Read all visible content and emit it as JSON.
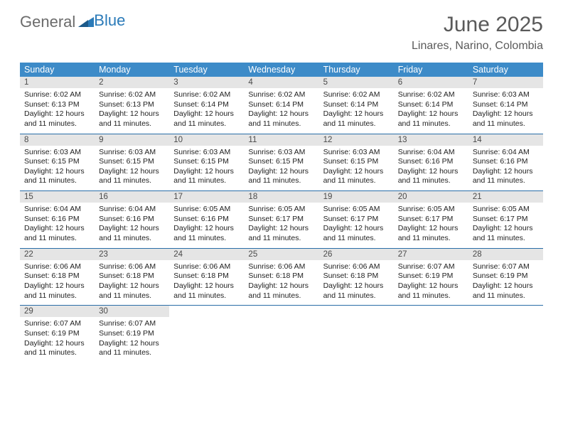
{
  "logo": {
    "text1": "General",
    "text2": "Blue"
  },
  "title": "June 2025",
  "location": "Linares, Narino, Colombia",
  "colors": {
    "header_bg": "#3d8bc8",
    "header_text": "#ffffff",
    "daynum_bg": "#e5e5e5",
    "week_divider": "#2a6ea8",
    "title_color": "#5a5a5a",
    "logo_gray": "#6b6b6b",
    "logo_blue": "#2a7ab8",
    "body_text": "#222222",
    "background": "#ffffff"
  },
  "weekdays": [
    "Sunday",
    "Monday",
    "Tuesday",
    "Wednesday",
    "Thursday",
    "Friday",
    "Saturday"
  ],
  "days": [
    {
      "n": "1",
      "sr": "Sunrise: 6:02 AM",
      "ss": "Sunset: 6:13 PM",
      "dl": "Daylight: 12 hours and 11 minutes."
    },
    {
      "n": "2",
      "sr": "Sunrise: 6:02 AM",
      "ss": "Sunset: 6:13 PM",
      "dl": "Daylight: 12 hours and 11 minutes."
    },
    {
      "n": "3",
      "sr": "Sunrise: 6:02 AM",
      "ss": "Sunset: 6:14 PM",
      "dl": "Daylight: 12 hours and 11 minutes."
    },
    {
      "n": "4",
      "sr": "Sunrise: 6:02 AM",
      "ss": "Sunset: 6:14 PM",
      "dl": "Daylight: 12 hours and 11 minutes."
    },
    {
      "n": "5",
      "sr": "Sunrise: 6:02 AM",
      "ss": "Sunset: 6:14 PM",
      "dl": "Daylight: 12 hours and 11 minutes."
    },
    {
      "n": "6",
      "sr": "Sunrise: 6:02 AM",
      "ss": "Sunset: 6:14 PM",
      "dl": "Daylight: 12 hours and 11 minutes."
    },
    {
      "n": "7",
      "sr": "Sunrise: 6:03 AM",
      "ss": "Sunset: 6:14 PM",
      "dl": "Daylight: 12 hours and 11 minutes."
    },
    {
      "n": "8",
      "sr": "Sunrise: 6:03 AM",
      "ss": "Sunset: 6:15 PM",
      "dl": "Daylight: 12 hours and 11 minutes."
    },
    {
      "n": "9",
      "sr": "Sunrise: 6:03 AM",
      "ss": "Sunset: 6:15 PM",
      "dl": "Daylight: 12 hours and 11 minutes."
    },
    {
      "n": "10",
      "sr": "Sunrise: 6:03 AM",
      "ss": "Sunset: 6:15 PM",
      "dl": "Daylight: 12 hours and 11 minutes."
    },
    {
      "n": "11",
      "sr": "Sunrise: 6:03 AM",
      "ss": "Sunset: 6:15 PM",
      "dl": "Daylight: 12 hours and 11 minutes."
    },
    {
      "n": "12",
      "sr": "Sunrise: 6:03 AM",
      "ss": "Sunset: 6:15 PM",
      "dl": "Daylight: 12 hours and 11 minutes."
    },
    {
      "n": "13",
      "sr": "Sunrise: 6:04 AM",
      "ss": "Sunset: 6:16 PM",
      "dl": "Daylight: 12 hours and 11 minutes."
    },
    {
      "n": "14",
      "sr": "Sunrise: 6:04 AM",
      "ss": "Sunset: 6:16 PM",
      "dl": "Daylight: 12 hours and 11 minutes."
    },
    {
      "n": "15",
      "sr": "Sunrise: 6:04 AM",
      "ss": "Sunset: 6:16 PM",
      "dl": "Daylight: 12 hours and 11 minutes."
    },
    {
      "n": "16",
      "sr": "Sunrise: 6:04 AM",
      "ss": "Sunset: 6:16 PM",
      "dl": "Daylight: 12 hours and 11 minutes."
    },
    {
      "n": "17",
      "sr": "Sunrise: 6:05 AM",
      "ss": "Sunset: 6:16 PM",
      "dl": "Daylight: 12 hours and 11 minutes."
    },
    {
      "n": "18",
      "sr": "Sunrise: 6:05 AM",
      "ss": "Sunset: 6:17 PM",
      "dl": "Daylight: 12 hours and 11 minutes."
    },
    {
      "n": "19",
      "sr": "Sunrise: 6:05 AM",
      "ss": "Sunset: 6:17 PM",
      "dl": "Daylight: 12 hours and 11 minutes."
    },
    {
      "n": "20",
      "sr": "Sunrise: 6:05 AM",
      "ss": "Sunset: 6:17 PM",
      "dl": "Daylight: 12 hours and 11 minutes."
    },
    {
      "n": "21",
      "sr": "Sunrise: 6:05 AM",
      "ss": "Sunset: 6:17 PM",
      "dl": "Daylight: 12 hours and 11 minutes."
    },
    {
      "n": "22",
      "sr": "Sunrise: 6:06 AM",
      "ss": "Sunset: 6:18 PM",
      "dl": "Daylight: 12 hours and 11 minutes."
    },
    {
      "n": "23",
      "sr": "Sunrise: 6:06 AM",
      "ss": "Sunset: 6:18 PM",
      "dl": "Daylight: 12 hours and 11 minutes."
    },
    {
      "n": "24",
      "sr": "Sunrise: 6:06 AM",
      "ss": "Sunset: 6:18 PM",
      "dl": "Daylight: 12 hours and 11 minutes."
    },
    {
      "n": "25",
      "sr": "Sunrise: 6:06 AM",
      "ss": "Sunset: 6:18 PM",
      "dl": "Daylight: 12 hours and 11 minutes."
    },
    {
      "n": "26",
      "sr": "Sunrise: 6:06 AM",
      "ss": "Sunset: 6:18 PM",
      "dl": "Daylight: 12 hours and 11 minutes."
    },
    {
      "n": "27",
      "sr": "Sunrise: 6:07 AM",
      "ss": "Sunset: 6:19 PM",
      "dl": "Daylight: 12 hours and 11 minutes."
    },
    {
      "n": "28",
      "sr": "Sunrise: 6:07 AM",
      "ss": "Sunset: 6:19 PM",
      "dl": "Daylight: 12 hours and 11 minutes."
    },
    {
      "n": "29",
      "sr": "Sunrise: 6:07 AM",
      "ss": "Sunset: 6:19 PM",
      "dl": "Daylight: 12 hours and 11 minutes."
    },
    {
      "n": "30",
      "sr": "Sunrise: 6:07 AM",
      "ss": "Sunset: 6:19 PM",
      "dl": "Daylight: 12 hours and 11 minutes."
    }
  ]
}
